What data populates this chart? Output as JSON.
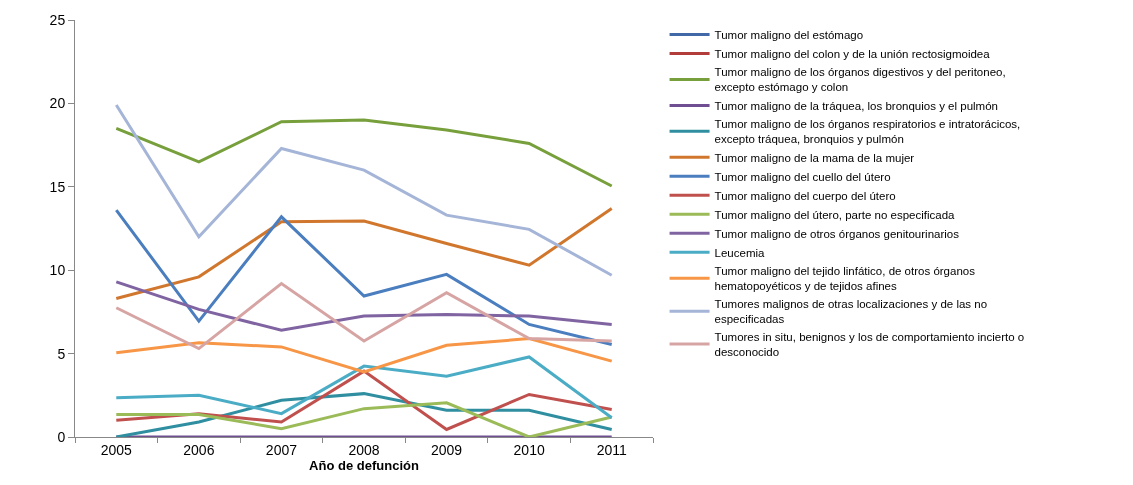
{
  "chart_data": {
    "type": "line",
    "xlabel": "Año de defunción",
    "categories": [
      "2005",
      "2006",
      "2007",
      "2008",
      "2009",
      "2010",
      "2011"
    ],
    "ylim": [
      0,
      25
    ],
    "yticks": [
      0,
      5,
      10,
      15,
      20,
      25
    ],
    "grid": false,
    "legend": "right",
    "marker": "none",
    "line_style": "solid",
    "series": [
      {
        "name": "Tumor maligno del estómago",
        "color": "#4169a8",
        "values": [
          null,
          null,
          null,
          null,
          null,
          null,
          null
        ]
      },
      {
        "name": "Tumor maligno del colon y de la unión rectosigmoidea",
        "color": "#b13c3a",
        "values": [
          null,
          null,
          null,
          null,
          null,
          null,
          null
        ]
      },
      {
        "name": "Tumor maligno de los órganos digestivos y del peritoneo, excepto estómago y colon",
        "color": "#77a03c",
        "values": [
          18.5,
          16.5,
          18.9,
          19.0,
          18.4,
          17.6,
          15.05
        ]
      },
      {
        "name": "Tumor maligno de la tráquea, los bronquios y el pulmón",
        "color": "#6f4f92",
        "values": [
          0,
          0,
          0,
          0,
          0,
          0,
          0
        ]
      },
      {
        "name": "Tumor maligno de los órganos respiratorios e intratorácicos, excepto tráquea, bronquios y pulmón",
        "color": "#2f8fa0",
        "values": [
          0,
          0.9,
          2.2,
          2.6,
          1.6,
          1.6,
          0.45
        ]
      },
      {
        "name": "Tumor maligno de la mama de la mujer",
        "color": "#d0772d",
        "values": [
          8.3,
          9.6,
          12.9,
          12.95,
          11.6,
          10.3,
          13.7
        ]
      },
      {
        "name": "Tumor maligno del cuello del útero",
        "color": "#4a7ebf",
        "values": [
          13.6,
          6.95,
          13.2,
          8.45,
          9.75,
          6.75,
          5.55
        ]
      },
      {
        "name": "Tumor maligno del cuerpo del útero",
        "color": "#c0504d",
        "values": [
          1.0,
          1.4,
          0.9,
          3.95,
          0.45,
          2.55,
          1.65
        ]
      },
      {
        "name": "Tumor maligno del útero, parte no especificada",
        "color": "#9bbb59",
        "values": [
          1.35,
          1.35,
          0.5,
          1.7,
          2.05,
          0,
          1.2
        ]
      },
      {
        "name": "Tumor maligno de otros órganos genitourinarios",
        "color": "#8064a2",
        "values": [
          9.3,
          7.65,
          6.4,
          7.25,
          7.35,
          7.25,
          6.75
        ]
      },
      {
        "name": "Leucemia",
        "color": "#4bacc6",
        "values": [
          2.35,
          2.5,
          1.4,
          4.25,
          3.65,
          4.8,
          1.15
        ]
      },
      {
        "name": "Tumor maligno del tejido linfático, de otros órganos hematopoyéticos y de tejidos afines",
        "color": "#f79646",
        "values": [
          5.05,
          5.65,
          5.4,
          3.9,
          5.5,
          5.9,
          4.55
        ]
      },
      {
        "name": "Tumores malignos de otras localizaciones y de las no especificadas",
        "color": "#a5b5d8",
        "values": [
          19.9,
          12.0,
          17.3,
          16.0,
          13.3,
          12.45,
          9.7
        ]
      },
      {
        "name": "Tumores in situ, benignos y los de comportamiento incierto o desconocido",
        "color": "#d7a4a4",
        "values": [
          7.75,
          5.3,
          9.2,
          5.75,
          8.65,
          5.9,
          5.75
        ]
      }
    ]
  }
}
